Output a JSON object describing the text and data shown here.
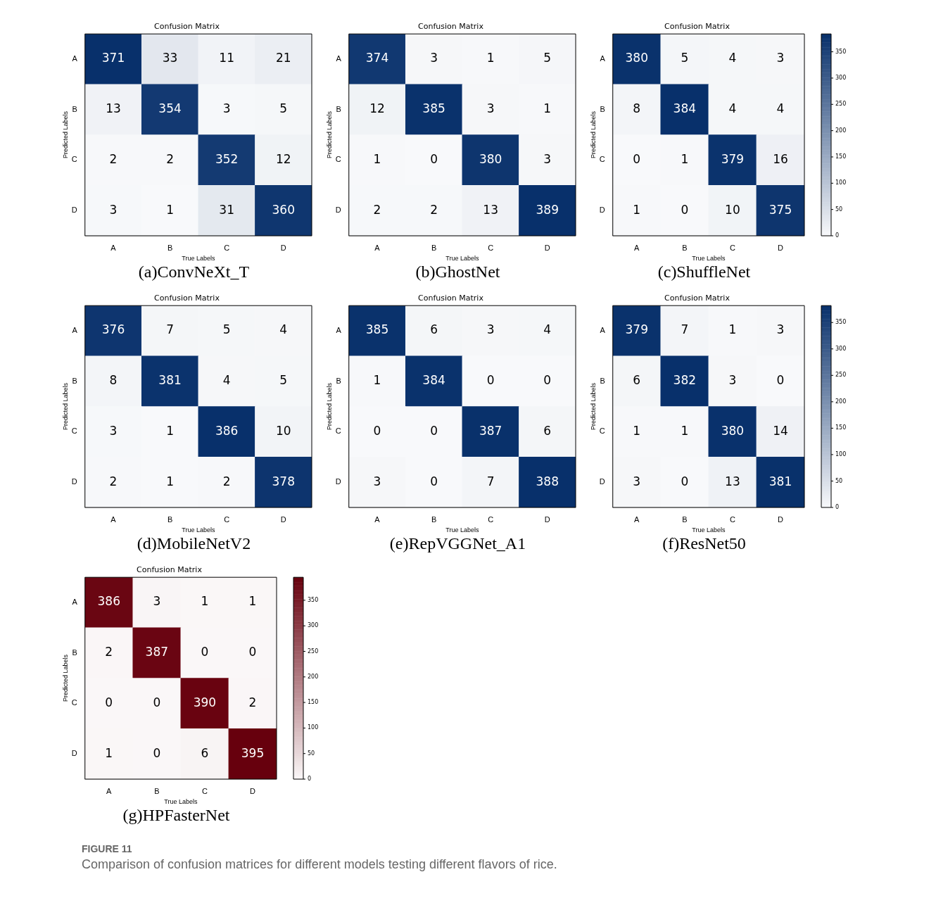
{
  "chart_data": [
    {
      "type": "heatmap",
      "title": "Confusion Matrix",
      "subtitle": "(a)ConvNeXt_T",
      "data_labels": true,
      "xlabel": "True Labels",
      "ylabel": "Predicted Labels",
      "color": "#08306b",
      "categories": [
        "A",
        "B",
        "C",
        "D"
      ],
      "y_categories": [
        "A",
        "B",
        "C",
        "D"
      ],
      "cells": [
        [
          371,
          33,
          11,
          21
        ],
        [
          13,
          354,
          3,
          5
        ],
        [
          2,
          2,
          352,
          12
        ],
        [
          3,
          1,
          31,
          360
        ]
      ]
    },
    {
      "type": "heatmap",
      "title": "Confusion Matrix",
      "subtitle": "(b)GhostNet",
      "data_labels": true,
      "xlabel": "True Labels",
      "ylabel": "Predicted Labels",
      "color": "#08306b",
      "categories": [
        "A",
        "B",
        "C",
        "D"
      ],
      "y_categories": [
        "A",
        "B",
        "C",
        "D"
      ],
      "cells": [
        [
          374,
          3,
          1,
          5
        ],
        [
          12,
          385,
          3,
          1
        ],
        [
          1,
          0,
          380,
          3
        ],
        [
          2,
          2,
          13,
          389
        ]
      ]
    },
    {
      "type": "heatmap",
      "title": "Confusion Matrix",
      "subtitle": "(c)ShuffleNet",
      "data_labels": true,
      "xlabel": "True Labels",
      "ylabel": "Predicted Labels",
      "color": "#08306b",
      "categories": [
        "A",
        "B",
        "C",
        "D"
      ],
      "y_categories": [
        "A",
        "B",
        "C",
        "D"
      ],
      "cells": [
        [
          380,
          5,
          4,
          3
        ],
        [
          8,
          384,
          4,
          4
        ],
        [
          0,
          1,
          379,
          16
        ],
        [
          1,
          0,
          10,
          375
        ]
      ],
      "clim": [
        0,
        384
      ],
      "cticks": [
        0,
        50,
        100,
        150,
        200,
        250,
        300,
        350
      ]
    },
    {
      "type": "heatmap",
      "title": "Confusion Matrix",
      "subtitle": "(d)MobileNetV2",
      "data_labels": true,
      "xlabel": "True Labels",
      "ylabel": "Predicted Labels",
      "color": "#08306b",
      "categories": [
        "A",
        "B",
        "C",
        "D"
      ],
      "y_categories": [
        "A",
        "B",
        "C",
        "D"
      ],
      "cells": [
        [
          376,
          7,
          5,
          4
        ],
        [
          8,
          381,
          4,
          5
        ],
        [
          3,
          1,
          386,
          10
        ],
        [
          2,
          1,
          2,
          378
        ]
      ]
    },
    {
      "type": "heatmap",
      "title": "Confusion Matrix",
      "subtitle": "(e)RepVGGNet_A1",
      "data_labels": true,
      "xlabel": "True Labels",
      "ylabel": "Predicted Labels",
      "color": "#08306b",
      "categories": [
        "A",
        "B",
        "C",
        "D"
      ],
      "y_categories": [
        "A",
        "B",
        "C",
        "D"
      ],
      "cells": [
        [
          385,
          6,
          3,
          4
        ],
        [
          1,
          384,
          0,
          0
        ],
        [
          0,
          0,
          387,
          6
        ],
        [
          3,
          0,
          7,
          388
        ]
      ]
    },
    {
      "type": "heatmap",
      "title": "Confusion Matrix",
      "subtitle": "(f)ResNet50",
      "data_labels": true,
      "xlabel": "True Labels",
      "ylabel": "Predicted Labels",
      "color": "#08306b",
      "categories": [
        "A",
        "B",
        "C",
        "D"
      ],
      "y_categories": [
        "A",
        "B",
        "C",
        "D"
      ],
      "cells": [
        [
          379,
          7,
          1,
          3
        ],
        [
          6,
          382,
          3,
          0
        ],
        [
          1,
          1,
          380,
          14
        ],
        [
          3,
          0,
          13,
          381
        ]
      ],
      "clim": [
        0,
        382
      ],
      "cticks": [
        0,
        50,
        100,
        150,
        200,
        250,
        300,
        350
      ]
    },
    {
      "type": "heatmap",
      "title": "Confusion Matrix",
      "subtitle": "(g)HPFasterNet",
      "data_labels": true,
      "xlabel": "True Labels",
      "ylabel": "Predicted Labels",
      "color": "#67000d",
      "categories": [
        "A",
        "B",
        "C",
        "D"
      ],
      "y_categories": [
        "A",
        "B",
        "C",
        "D"
      ],
      "cells": [
        [
          386,
          3,
          1,
          1
        ],
        [
          2,
          387,
          0,
          0
        ],
        [
          0,
          0,
          390,
          2
        ],
        [
          1,
          0,
          6,
          395
        ]
      ],
      "clim": [
        0,
        395
      ],
      "cticks": [
        0,
        50,
        100,
        150,
        200,
        250,
        300,
        350
      ]
    },
    {
      "type": "other",
      "title": "FIGURE 11",
      "annotations": [
        "Comparison of confusion matrices for different models testing different flavors of rice."
      ]
    }
  ]
}
